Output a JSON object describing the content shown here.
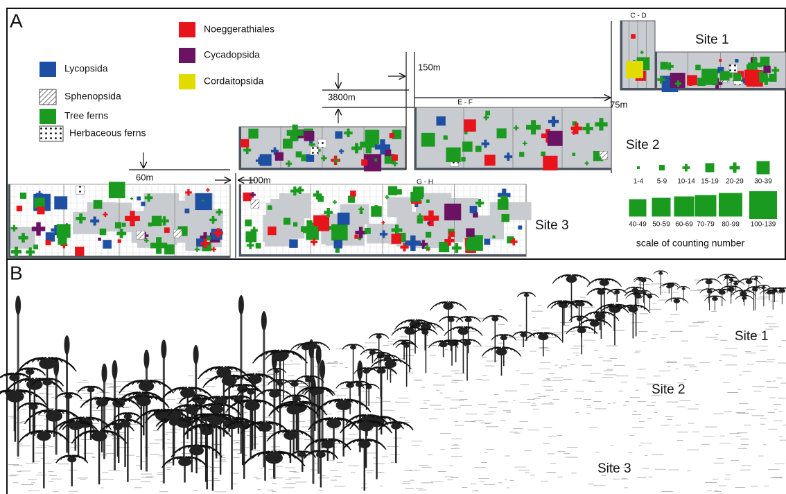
{
  "panel_a": {
    "label": "A",
    "legend": [
      {
        "name": "Lycopsida",
        "color": "#1d4fa3"
      },
      {
        "name": "Sphenopsida"
      },
      {
        "name": "Tree ferns",
        "color": "#1a9a1e"
      },
      {
        "name": "Herbaceous ferns"
      },
      {
        "name": "Noeggerathiales",
        "color": "#e8141c"
      },
      {
        "name": "Cycadopsida",
        "color": "#6b1263"
      },
      {
        "name": "Cordaitopsida",
        "color": "#e2db00"
      }
    ],
    "distances": [
      "3800m",
      "150m",
      "75m",
      "60m",
      "100m"
    ],
    "sections": [
      "C - D",
      "E - F",
      "G - H"
    ],
    "sites": [
      "Site 1",
      "Site 2",
      "Site 3"
    ],
    "scale": {
      "labels": [
        "1-4",
        "5-9",
        "10-14",
        "15-19",
        "20-29",
        "30-39",
        "40-49",
        "50-59",
        "60-69",
        "70-79",
        "80-99",
        "100-139"
      ],
      "caption": "scale of counting number"
    }
  },
  "panel_b": {
    "label": "B",
    "sites": [
      "Site 1",
      "Site 2",
      "Site 3"
    ]
  }
}
